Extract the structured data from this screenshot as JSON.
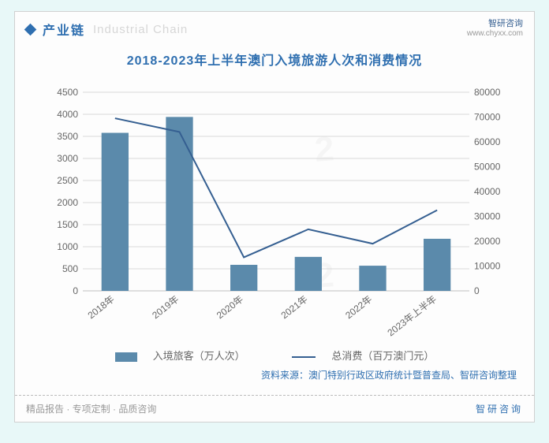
{
  "header": {
    "section_title": "产业链",
    "section_title_en": "Industrial Chain",
    "brand": "智研咨询",
    "brand_url": "www.chyxx.com"
  },
  "chart": {
    "type": "bar+line dual-axis",
    "title": "2018-2023年上半年澳门入境旅游人次和消费情况",
    "categories": [
      "2018年",
      "2019年",
      "2020年",
      "2021年",
      "2022年",
      "2023年上半年"
    ],
    "bars": {
      "label": "入境旅客（万人次）",
      "values": [
        3580,
        3940,
        590,
        770,
        570,
        1180
      ],
      "color": "#5b8aab"
    },
    "line": {
      "label": "总消费（百万澳门元）",
      "values": [
        69500,
        64000,
        13500,
        24800,
        19000,
        32500
      ],
      "color": "#355f91"
    },
    "y_left": {
      "min": 0,
      "max": 4500,
      "step": 500,
      "label_fontsize": 12,
      "label_color": "#666666"
    },
    "y_right": {
      "min": 0,
      "max": 80000,
      "step": 10000,
      "label_fontsize": 12,
      "label_color": "#666666"
    },
    "grid_color": "#d9d9d9",
    "baseline_color": "#bfbfbf",
    "background_color": "#fdfdfd",
    "bar_width_ratio": 0.42,
    "line_width": 2
  },
  "source": "资料来源：澳门特别行政区政府统计暨普查局、智研咨询整理",
  "footer": {
    "left": "精品报告 · 专项定制 · 品质咨询",
    "right": "智研咨询"
  }
}
